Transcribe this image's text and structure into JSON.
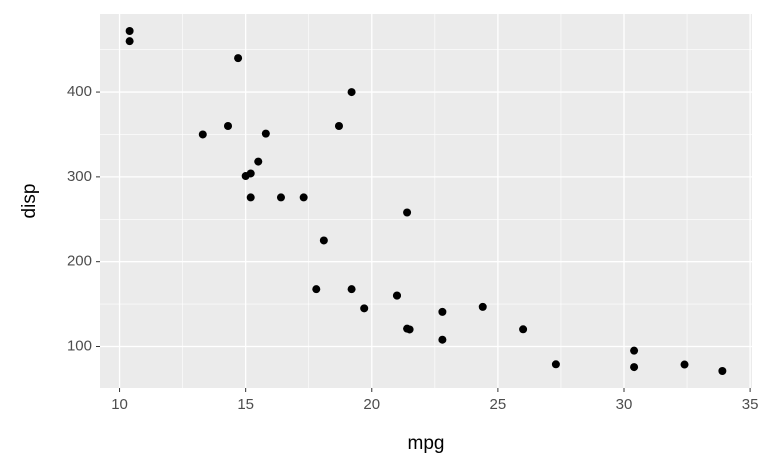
{
  "chart_data": {
    "type": "scatter",
    "x_label": "mpg",
    "y_label": "disp",
    "x": [
      21.0,
      21.0,
      22.8,
      21.4,
      18.7,
      18.1,
      14.3,
      24.4,
      22.8,
      19.2,
      17.8,
      16.4,
      17.3,
      15.2,
      10.4,
      10.4,
      14.7,
      32.4,
      30.4,
      33.9,
      21.5,
      15.5,
      15.2,
      13.3,
      19.2,
      27.3,
      26.0,
      30.4,
      15.8,
      19.7,
      15.0,
      21.4
    ],
    "values": [
      160,
      160,
      108,
      258,
      360,
      225,
      360,
      146.7,
      140.8,
      167.6,
      167.6,
      275.8,
      275.8,
      275.8,
      472,
      460,
      440,
      78.7,
      75.7,
      71.1,
      120.1,
      318,
      304,
      350,
      400,
      79,
      120.3,
      95.1,
      351,
      145,
      301,
      121
    ],
    "color": "#000000",
    "xlim": [
      9.225,
      35.075
    ],
    "ylim": [
      51.055,
      492.045
    ],
    "xticks": [
      10,
      15,
      20,
      25,
      30,
      35
    ],
    "yticks": [
      100,
      200,
      300,
      400
    ],
    "x_minor_ticks": [
      12.5,
      17.5,
      22.5,
      27.5,
      32.5
    ],
    "y_minor_ticks": [
      150,
      250,
      350,
      450
    ],
    "grid": true
  }
}
